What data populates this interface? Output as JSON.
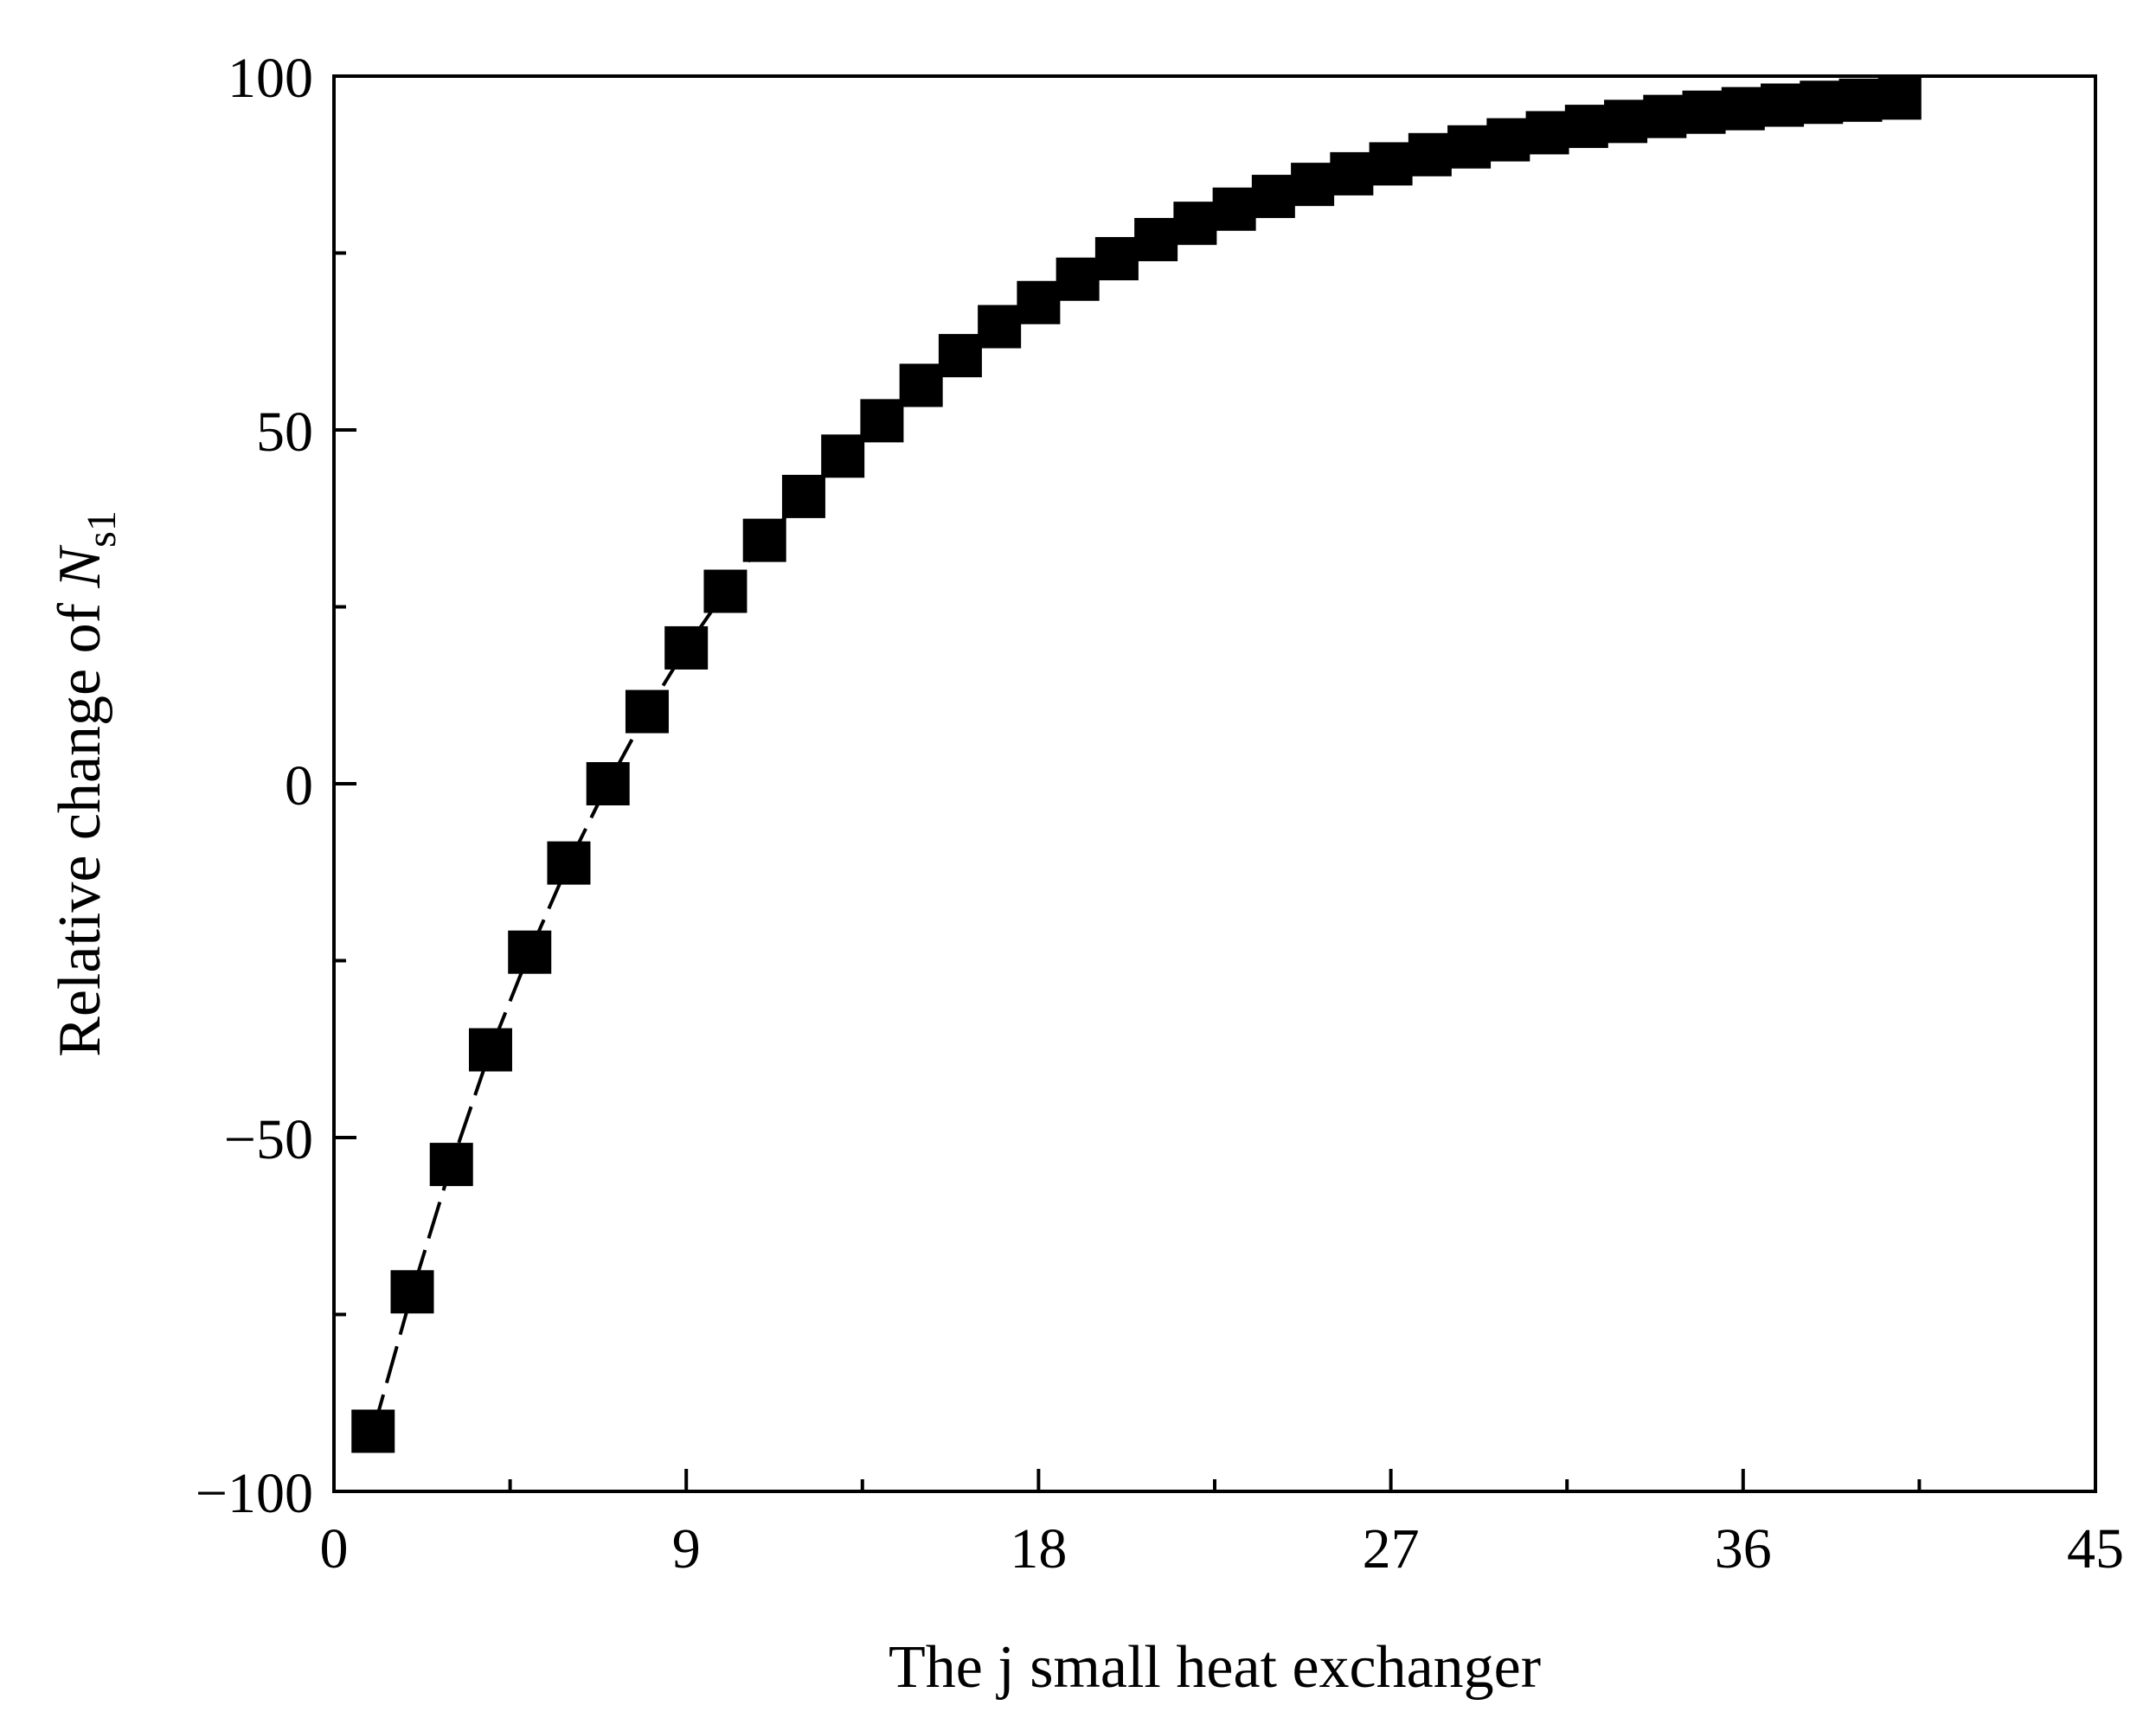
{
  "chart_data": {
    "type": "line",
    "title": "",
    "xlabel": "The j small heat exchanger",
    "ylabel": {
      "prefix": "Relative change of ",
      "symbol": "N",
      "subscript": "s1"
    },
    "xlim": [
      0,
      45
    ],
    "ylim": [
      -100,
      100
    ],
    "xticks": [
      0,
      9,
      18,
      27,
      36,
      45
    ],
    "xtick_labels": [
      "0",
      "9",
      "18",
      "27",
      "36",
      "45"
    ],
    "yticks": [
      -100,
      -50,
      0,
      50,
      100
    ],
    "ytick_labels": [
      "−100",
      "−50",
      "0",
      "50",
      "100"
    ],
    "grid": false,
    "legend": "none",
    "series": [
      {
        "marker": "square",
        "line_style": "dashed",
        "color": "#000000",
        "x": [
          1,
          2,
          3,
          4,
          5,
          6,
          7,
          8,
          9,
          10,
          11,
          12,
          13,
          14,
          15,
          16,
          17,
          18,
          19,
          20,
          21,
          22,
          23,
          24,
          25,
          26,
          27,
          28,
          29,
          30,
          31,
          32,
          33,
          34,
          35,
          36,
          37,
          38,
          39,
          40
        ],
        "y": [
          -91.5,
          -71.8,
          -53.8,
          -37.6,
          -23.8,
          -11.2,
          0,
          10.2,
          19.2,
          27.2,
          34.4,
          40.6,
          46.3,
          51.3,
          56.3,
          60.5,
          64.6,
          68.0,
          71.3,
          74.2,
          76.9,
          79.2,
          81.2,
          83.0,
          84.7,
          86.2,
          87.6,
          88.9,
          90.0,
          91.0,
          92.0,
          92.9,
          93.6,
          94.3,
          94.9,
          95.4,
          95.9,
          96.3,
          96.6,
          96.9
        ]
      }
    ]
  }
}
